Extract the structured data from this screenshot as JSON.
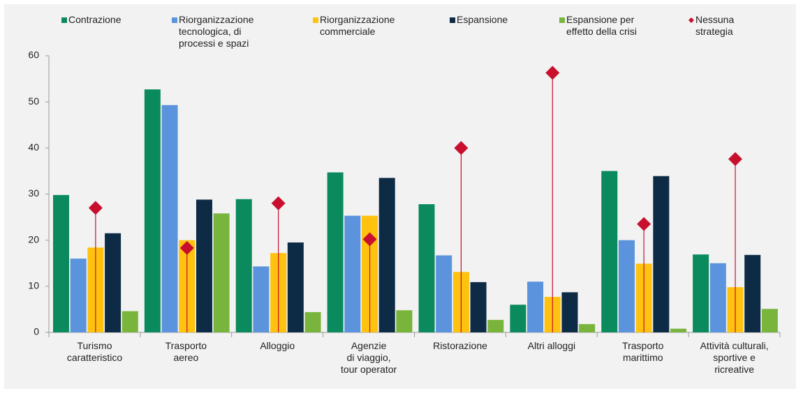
{
  "chart_data": {
    "type": "bar",
    "categories": [
      "Turismo\ncaratteristico",
      "Trasporto\naereo",
      "Alloggio",
      "Agenzie\ndi viaggio,\ntour operator",
      "Ristorazione",
      "Altri alloggi",
      "Trasporto\nmarittimo",
      "Attività culturali,\nsportive e\nricreative"
    ],
    "series": [
      {
        "name": "Contrazione",
        "color": "#0b8a5e",
        "values": [
          29.8,
          52.7,
          28.9,
          34.7,
          27.8,
          6,
          35,
          16.9
        ]
      },
      {
        "name": "Riorganizzazione\ntecnologica, di\nprocessi e spazi",
        "color": "#5b93dc",
        "values": [
          16,
          49.3,
          14.3,
          25.3,
          16.7,
          11,
          20,
          15
        ]
      },
      {
        "name": "Riorganizzazione\ncommerciale",
        "color": "#ffc20e",
        "values": [
          18.4,
          20,
          17.2,
          25.3,
          13.1,
          7.7,
          14.9,
          9.8
        ]
      },
      {
        "name": "Espansione",
        "color": "#0d2b45",
        "values": [
          21.5,
          28.8,
          19.5,
          33.5,
          10.9,
          8.7,
          33.9,
          16.8
        ]
      },
      {
        "name": "Espansione per\neffetto della crisi",
        "color": "#79b53d",
        "values": [
          4.6,
          25.8,
          4.4,
          4.8,
          2.7,
          1.8,
          0.8,
          5.1
        ]
      },
      {
        "name": "Nessuna\nstrategia",
        "color": "#c8102e",
        "marker": "diamond",
        "values": [
          27,
          18.3,
          28,
          20.2,
          40,
          56.3,
          23.5,
          37.6
        ]
      }
    ],
    "ylim": [
      0,
      60
    ],
    "yticks": [
      0,
      10,
      20,
      30,
      40,
      50,
      60
    ],
    "legend": "top"
  }
}
